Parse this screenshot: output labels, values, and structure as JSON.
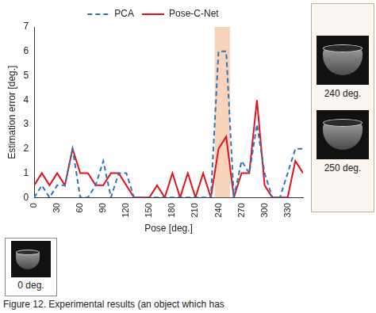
{
  "chart_data": {
    "type": "line",
    "x_label": "Pose [deg.]",
    "y_label": "Estimation error [deg.]",
    "x": [
      0,
      10,
      20,
      30,
      40,
      50,
      60,
      70,
      80,
      90,
      100,
      110,
      120,
      130,
      140,
      150,
      160,
      170,
      180,
      190,
      200,
      210,
      220,
      230,
      240,
      250,
      260,
      270,
      280,
      290,
      300,
      310,
      320,
      330,
      340,
      350
    ],
    "series": [
      {
        "name": "PCA",
        "color": "#2e75b6",
        "line_style": "dashed",
        "values": [
          0,
          0.5,
          0,
          0.5,
          0.5,
          2,
          0,
          0,
          0.5,
          1.5,
          0,
          1,
          1,
          0,
          0,
          0,
          0,
          0,
          0,
          0,
          0,
          0,
          0,
          0,
          6,
          6,
          0,
          1.5,
          1,
          3,
          1,
          0,
          0,
          1,
          2,
          2
        ]
      },
      {
        "name": "Pose-C-Net",
        "color": "#e0101e",
        "line_style": "solid",
        "values": [
          0.5,
          1,
          0.5,
          1,
          0.5,
          2,
          1,
          1,
          0.5,
          0.5,
          1,
          1,
          0.5,
          0,
          0,
          0,
          0.5,
          0,
          1,
          0,
          1,
          0,
          1,
          0,
          2,
          2.5,
          0,
          1,
          1,
          4,
          0.5,
          0,
          0,
          0,
          1.5,
          1
        ]
      }
    ],
    "xlim": [
      0,
      350
    ],
    "xticks": [
      0,
      30,
      60,
      90,
      120,
      150,
      180,
      210,
      240,
      270,
      300,
      330
    ],
    "ylim": [
      0,
      7
    ],
    "yticks": [
      0,
      1,
      2,
      3,
      4,
      5,
      6,
      7
    ],
    "highlight_range": [
      235,
      255
    ],
    "legend": "top",
    "grid": false,
    "image_labels": [
      "240 deg.",
      "250 deg.",
      "0 deg."
    ],
    "caption": "Figure 12. Experimental results (an object which has"
  }
}
